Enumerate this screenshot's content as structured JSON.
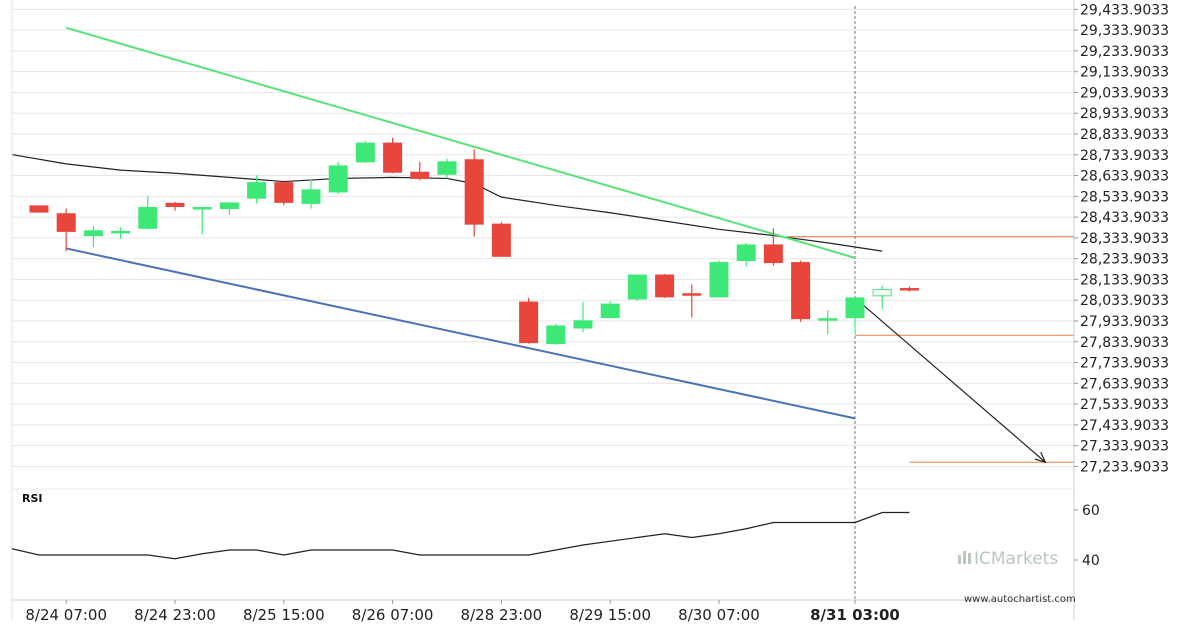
{
  "chart_data": {
    "type": "candlestick",
    "price_axis": {
      "ticks": [
        "29,433.9033",
        "29,333.9033",
        "29,233.9033",
        "29,133.9033",
        "29,033.9033",
        "28,933.9033",
        "28,833.9033",
        "28,733.9033",
        "28,633.9033",
        "28,533.9033",
        "28,433.9033",
        "28,333.9033",
        "28,233.9033",
        "28,133.9033",
        "28,033.9033",
        "27,933.9033",
        "27,833.9033",
        "27,733.9033",
        "27,633.9033",
        "27,533.9033",
        "27,433.9033",
        "27,333.9033",
        "27,233.9033"
      ],
      "range": [
        27130,
        29450
      ]
    },
    "time_axis": {
      "labels": [
        {
          "text": "8/24 07:00",
          "index": 1,
          "bold": false
        },
        {
          "text": "8/24 23:00",
          "index": 5,
          "bold": false
        },
        {
          "text": "8/25 15:00",
          "index": 9,
          "bold": false
        },
        {
          "text": "8/26 07:00",
          "index": 13,
          "bold": false
        },
        {
          "text": "8/28 23:00",
          "index": 17,
          "bold": false
        },
        {
          "text": "8/29 15:00",
          "index": 21,
          "bold": false
        },
        {
          "text": "8/30 07:00",
          "index": 25,
          "bold": false
        },
        {
          "text": "8/31 03:00",
          "index": 30,
          "bold": true
        }
      ]
    },
    "candles": [
      {
        "o": 28488,
        "h": 28488,
        "l": 28458,
        "c": 28458
      },
      {
        "o": 28450,
        "h": 28475,
        "l": 28270,
        "c": 28365
      },
      {
        "o": 28345,
        "h": 28390,
        "l": 28290,
        "c": 28368
      },
      {
        "o": 28365,
        "h": 28385,
        "l": 28330,
        "c": 28365
      },
      {
        "o": 28380,
        "h": 28535,
        "l": 28375,
        "c": 28480
      },
      {
        "o": 28500,
        "h": 28508,
        "l": 28465,
        "c": 28485
      },
      {
        "o": 28480,
        "h": 28483,
        "l": 28350,
        "c": 28480
      },
      {
        "o": 28475,
        "h": 28505,
        "l": 28445,
        "c": 28502
      },
      {
        "o": 28525,
        "h": 28635,
        "l": 28500,
        "c": 28600
      },
      {
        "o": 28600,
        "h": 28605,
        "l": 28490,
        "c": 28505
      },
      {
        "o": 28500,
        "h": 28615,
        "l": 28475,
        "c": 28565
      },
      {
        "o": 28555,
        "h": 28700,
        "l": 28545,
        "c": 28680
      },
      {
        "o": 28700,
        "h": 28800,
        "l": 28695,
        "c": 28790
      },
      {
        "o": 28790,
        "h": 28815,
        "l": 28645,
        "c": 28650
      },
      {
        "o": 28650,
        "h": 28700,
        "l": 28610,
        "c": 28620
      },
      {
        "o": 28640,
        "h": 28715,
        "l": 28620,
        "c": 28700
      },
      {
        "o": 28710,
        "h": 28760,
        "l": 28340,
        "c": 28400
      },
      {
        "o": 28400,
        "h": 28410,
        "l": 28250,
        "c": 28245
      },
      {
        "o": 28025,
        "h": 28045,
        "l": 27825,
        "c": 27830
      },
      {
        "o": 27825,
        "h": 27920,
        "l": 27820,
        "c": 27910
      },
      {
        "o": 27900,
        "h": 28025,
        "l": 27880,
        "c": 27935
      },
      {
        "o": 27950,
        "h": 28030,
        "l": 27950,
        "c": 28015
      },
      {
        "o": 28040,
        "h": 28155,
        "l": 28030,
        "c": 28155
      },
      {
        "o": 28155,
        "h": 28160,
        "l": 28045,
        "c": 28050
      },
      {
        "o": 28065,
        "h": 28110,
        "l": 27950,
        "c": 28060
      },
      {
        "o": 28050,
        "h": 28225,
        "l": 28050,
        "c": 28215
      },
      {
        "o": 28225,
        "h": 28310,
        "l": 28195,
        "c": 28300
      },
      {
        "o": 28300,
        "h": 28380,
        "l": 28200,
        "c": 28215
      },
      {
        "o": 28215,
        "h": 28225,
        "l": 27930,
        "c": 27945
      },
      {
        "o": 27945,
        "h": 27985,
        "l": 27870,
        "c": 27945
      },
      {
        "o": 27950,
        "h": 28040,
        "l": 27870,
        "c": 28045
      },
      {
        "o": 28055,
        "h": 28105,
        "l": 27990,
        "c": 28085
      },
      {
        "o": 28090,
        "h": 28100,
        "l": 28075,
        "c": 28085
      }
    ],
    "moving_average": [
      {
        "i": -1,
        "v": 28735
      },
      {
        "i": 1,
        "v": 28690
      },
      {
        "i": 3,
        "v": 28660
      },
      {
        "i": 5,
        "v": 28645
      },
      {
        "i": 7,
        "v": 28625
      },
      {
        "i": 9,
        "v": 28605
      },
      {
        "i": 11,
        "v": 28620
      },
      {
        "i": 13,
        "v": 28625
      },
      {
        "i": 15,
        "v": 28620
      },
      {
        "i": 16,
        "v": 28595
      },
      {
        "i": 17,
        "v": 28530
      },
      {
        "i": 19,
        "v": 28490
      },
      {
        "i": 21,
        "v": 28455
      },
      {
        "i": 23,
        "v": 28415
      },
      {
        "i": 25,
        "v": 28375
      },
      {
        "i": 27,
        "v": 28345
      },
      {
        "i": 29,
        "v": 28310
      },
      {
        "i": 31,
        "v": 28270
      }
    ],
    "upper_trendline": {
      "start": {
        "i": 1,
        "v": 29345
      },
      "end": {
        "i": 30,
        "v": 28238
      },
      "color": "#5ae27a"
    },
    "lower_trendline": {
      "start": {
        "i": 1,
        "v": 28283
      },
      "end": {
        "i": 30,
        "v": 27465
      },
      "color": "#4a72b5"
    },
    "horizontal_levels": [
      {
        "value": 28340,
        "from_i": 27.5,
        "to_i": 39,
        "color": "#e0854a"
      },
      {
        "value": 27865,
        "from_i": 30,
        "to_i": 39,
        "color": "#e0854a"
      },
      {
        "value": 27254,
        "from_i": 32,
        "to_i": 39,
        "color": "#e0854a"
      }
    ],
    "forecast_arrow": {
      "from": {
        "i": 30,
        "v": 28045
      },
      "to": {
        "i": 37,
        "v": 27254
      }
    },
    "current_bar_index": 30,
    "rsi": {
      "title": "RSI",
      "ticks": [
        60,
        40
      ],
      "range": [
        24,
        68
      ],
      "values": [
        {
          "i": -1,
          "v": 44.5
        },
        {
          "i": 0,
          "v": 42
        },
        {
          "i": 4,
          "v": 42
        },
        {
          "i": 5,
          "v": 40.5
        },
        {
          "i": 6,
          "v": 42.5
        },
        {
          "i": 7,
          "v": 44
        },
        {
          "i": 8,
          "v": 44
        },
        {
          "i": 9,
          "v": 42
        },
        {
          "i": 10,
          "v": 44
        },
        {
          "i": 13,
          "v": 44
        },
        {
          "i": 14,
          "v": 42
        },
        {
          "i": 18,
          "v": 42
        },
        {
          "i": 20,
          "v": 46
        },
        {
          "i": 22,
          "v": 49
        },
        {
          "i": 23,
          "v": 50.5
        },
        {
          "i": 24,
          "v": 49
        },
        {
          "i": 25,
          "v": 50.5
        },
        {
          "i": 26,
          "v": 52.5
        },
        {
          "i": 27,
          "v": 55
        },
        {
          "i": 30,
          "v": 55
        },
        {
          "i": 31,
          "v": 59
        },
        {
          "i": 32,
          "v": 59
        }
      ]
    },
    "colors": {
      "bull": "#3ee876",
      "bear": "#e8453c",
      "ma": "#222222",
      "rsi_line": "#222222",
      "arrow": "#222222",
      "grid": "#e6e6e6"
    }
  },
  "watermark": {
    "brand": "ICMarkets",
    "url": "www.autochartist.com"
  }
}
